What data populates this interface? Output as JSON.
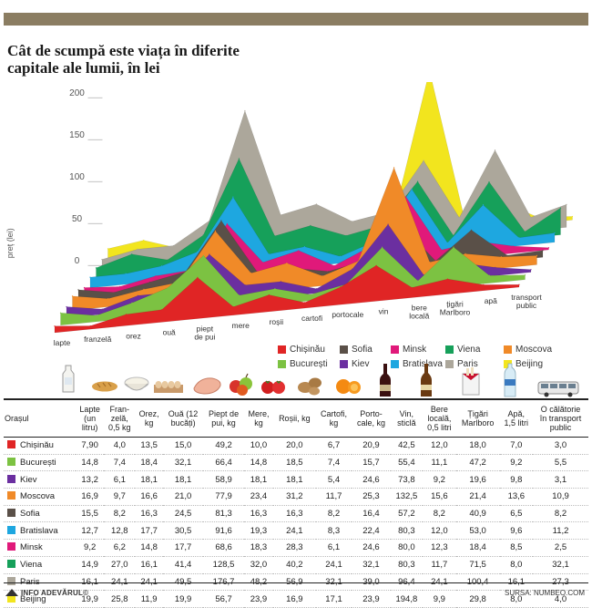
{
  "header": {
    "title_line1": "Cât de scumpă este viața în diferite",
    "title_line2": "capitale ale lumii, în lei"
  },
  "chart_data": {
    "type": "area",
    "title": "Cât de scumpă este viața în diferite capitale ale lumii, în lei",
    "ylabel": "preț (lei)",
    "yticks": [
      0,
      50,
      100,
      150,
      200
    ],
    "ylim": [
      0,
      220
    ],
    "categories": [
      "lapte",
      "franzelă",
      "orez",
      "ouă",
      "piept de pui",
      "mere",
      "roșii",
      "cartofi",
      "portocale",
      "vin",
      "bere locală",
      "țigări Marlboro",
      "apă",
      "transport public"
    ],
    "series": [
      {
        "name": "Beijing",
        "color": "#f2e51e",
        "values": [
          19.9,
          25.8,
          11.9,
          19.9,
          56.7,
          23.9,
          16.9,
          17.1,
          23.9,
          194.8,
          9.9,
          29.8,
          8.0,
          4.0
        ]
      },
      {
        "name": "Paris",
        "color": "#aca79b",
        "values": [
          16.1,
          24.1,
          24.1,
          49.5,
          176.7,
          48.2,
          56.9,
          32.1,
          39.0,
          96.4,
          24.1,
          100.4,
          16.1,
          27.3
        ]
      },
      {
        "name": "Viena",
        "color": "#16a05a",
        "values": [
          14.9,
          27.0,
          16.1,
          41.4,
          128.5,
          32.0,
          40.2,
          24.1,
          32.1,
          80.3,
          11.7,
          71.5,
          8.0,
          32.1
        ]
      },
      {
        "name": "Bratislava",
        "color": "#1ea7e0",
        "values": [
          12.7,
          12.8,
          17.7,
          30.5,
          91.6,
          19.3,
          24.1,
          8.3,
          22.4,
          80.3,
          12.0,
          53.0,
          9.6,
          11.2
        ]
      },
      {
        "name": "Minsk",
        "color": "#e0197a",
        "values": [
          9.2,
          6.2,
          14.8,
          17.7,
          68.6,
          18.3,
          28.3,
          6.1,
          24.6,
          80.0,
          12.3,
          18.4,
          8.5,
          2.5
        ]
      },
      {
        "name": "Sofia",
        "color": "#5a5048",
        "values": [
          15.5,
          8.2,
          16.3,
          24.5,
          81.3,
          16.3,
          16.3,
          8.2,
          16.4,
          57.2,
          8.2,
          40.9,
          6.5,
          8.2
        ]
      },
      {
        "name": "Moscova",
        "color": "#f08a28",
        "values": [
          16.9,
          9.7,
          16.6,
          21.0,
          77.9,
          23.4,
          31.2,
          11.7,
          25.3,
          132.5,
          15.6,
          21.4,
          13.6,
          10.9
        ]
      },
      {
        "name": "Kiev",
        "color": "#6b2fa0",
        "values": [
          13.2,
          6.1,
          18.1,
          18.1,
          58.9,
          18.1,
          18.1,
          5.4,
          24.6,
          73.8,
          9.2,
          19.6,
          9.8,
          3.1
        ]
      },
      {
        "name": "București",
        "color": "#7cc242",
        "values": [
          14.8,
          7.4,
          18.4,
          32.1,
          66.4,
          14.8,
          18.5,
          7.4,
          15.7,
          55.4,
          11.1,
          47.2,
          9.2,
          5.5
        ]
      },
      {
        "name": "Chișinău",
        "color": "#e02525",
        "values": [
          7.9,
          4.0,
          13.5,
          15.0,
          49.2,
          10.0,
          20.0,
          6.7,
          20.9,
          42.5,
          12.0,
          18.0,
          7.0,
          3.0
        ]
      }
    ]
  },
  "axis": {
    "ylabel": "preț (lei)",
    "yticks": [
      "200",
      "150",
      "100",
      "50",
      "0"
    ],
    "xlabels": [
      "lapte",
      "franzelă",
      "orez",
      "ouă",
      "piept\nde pui",
      "mere",
      "roșii",
      "cartofi",
      "portocale",
      "vin",
      "bere\nlocală",
      "țigări\nMarlboro",
      "apă",
      "transport\npublic"
    ]
  },
  "legend": [
    {
      "name": "Chișinău",
      "color": "#e02525"
    },
    {
      "name": "Sofia",
      "color": "#5a5048"
    },
    {
      "name": "Minsk",
      "color": "#e0197a"
    },
    {
      "name": "Viena",
      "color": "#16a05a"
    },
    {
      "name": "Moscova",
      "color": "#f08a28"
    },
    {
      "name": "București",
      "color": "#7cc242"
    },
    {
      "name": "Kiev",
      "color": "#6b2fa0"
    },
    {
      "name": "Bratislava",
      "color": "#1ea7e0"
    },
    {
      "name": "Paris",
      "color": "#aca79b"
    },
    {
      "name": "Beijing",
      "color": "#f2e51e"
    }
  ],
  "table": {
    "headers": [
      "Orașul",
      "Lapte\n(un\nlitru)",
      "Fran-\nzelă,\n0,5 kg",
      "Orez,\nkg",
      "Ouă (12\nbucăți)",
      "Piept de\npui, kg",
      "Mere,\nkg",
      "Roșii, kg",
      "Cartofi,\nkg",
      "Porto-\ncale, kg",
      "Vin,\nsticlă",
      "Bere\nlocală,\n0,5 litri",
      "Țigări\nMarlboro",
      "Apă,\n1,5 litri",
      "O călătorie\nîn transport\npublic"
    ],
    "rows": [
      {
        "city": "Chișinău",
        "color": "#e02525",
        "values": [
          "7,90",
          "4,0",
          "13,5",
          "15,0",
          "49,2",
          "10,0",
          "20,0",
          "6,7",
          "20,9",
          "42,5",
          "12,0",
          "18,0",
          "7,0",
          "3,0"
        ]
      },
      {
        "city": "București",
        "color": "#7cc242",
        "values": [
          "14,8",
          "7,4",
          "18,4",
          "32,1",
          "66,4",
          "14,8",
          "18,5",
          "7,4",
          "15,7",
          "55,4",
          "11,1",
          "47,2",
          "9,2",
          "5,5"
        ]
      },
      {
        "city": "Kiev",
        "color": "#6b2fa0",
        "values": [
          "13,2",
          "6,1",
          "18,1",
          "18,1",
          "58,9",
          "18,1",
          "18,1",
          "5,4",
          "24,6",
          "73,8",
          "9,2",
          "19,6",
          "9,8",
          "3,1"
        ]
      },
      {
        "city": "Moscova",
        "color": "#f08a28",
        "values": [
          "16,9",
          "9,7",
          "16,6",
          "21,0",
          "77,9",
          "23,4",
          "31,2",
          "11,7",
          "25,3",
          "132,5",
          "15,6",
          "21,4",
          "13,6",
          "10,9"
        ]
      },
      {
        "city": "Sofia",
        "color": "#5a5048",
        "values": [
          "15,5",
          "8,2",
          "16,3",
          "24,5",
          "81,3",
          "16,3",
          "16,3",
          "8,2",
          "16,4",
          "57,2",
          "8,2",
          "40,9",
          "6,5",
          "8,2"
        ]
      },
      {
        "city": "Bratislava",
        "color": "#1ea7e0",
        "values": [
          "12,7",
          "12,8",
          "17,7",
          "30,5",
          "91,6",
          "19,3",
          "24,1",
          "8,3",
          "22,4",
          "80,3",
          "12,0",
          "53,0",
          "9,6",
          "11,2"
        ]
      },
      {
        "city": "Minsk",
        "color": "#e0197a",
        "values": [
          "9,2",
          "6,2",
          "14,8",
          "17,7",
          "68,6",
          "18,3",
          "28,3",
          "6,1",
          "24,6",
          "80,0",
          "12,3",
          "18,4",
          "8,5",
          "2,5"
        ]
      },
      {
        "city": "Viena",
        "color": "#16a05a",
        "values": [
          "14,9",
          "27,0",
          "16,1",
          "41,4",
          "128,5",
          "32,0",
          "40,2",
          "24,1",
          "32,1",
          "80,3",
          "11,7",
          "71,5",
          "8,0",
          "32,1"
        ]
      },
      {
        "city": "Paris",
        "color": "#aca79b",
        "values": [
          "16,1",
          "24,1",
          "24,1",
          "49,5",
          "176,7",
          "48,2",
          "56,9",
          "32,1",
          "39,0",
          "96,4",
          "24,1",
          "100,4",
          "16,1",
          "27,3"
        ]
      },
      {
        "city": "Beijing",
        "color": "#f2e51e",
        "values": [
          "19,9",
          "25,8",
          "11,9",
          "19,9",
          "56,7",
          "23,9",
          "16,9",
          "17,1",
          "23,9",
          "194,8",
          "9,9",
          "29,8",
          "8,0",
          "4,0"
        ]
      }
    ]
  },
  "icons": [
    "milk-bottle-icon",
    "bread-icon",
    "rice-bowl-icon",
    "egg-carton-icon",
    "chicken-breast-icon",
    "apples-icon",
    "tomatoes-icon",
    "potatoes-icon",
    "oranges-icon",
    "wine-bottle-icon",
    "beer-bottle-icon",
    "cigarettes-icon",
    "water-bottle-icon",
    "bus-icon"
  ],
  "footer": {
    "left": "INFO ADEVĂRUL©",
    "right": "SURSA: NUMBEO.COM"
  }
}
